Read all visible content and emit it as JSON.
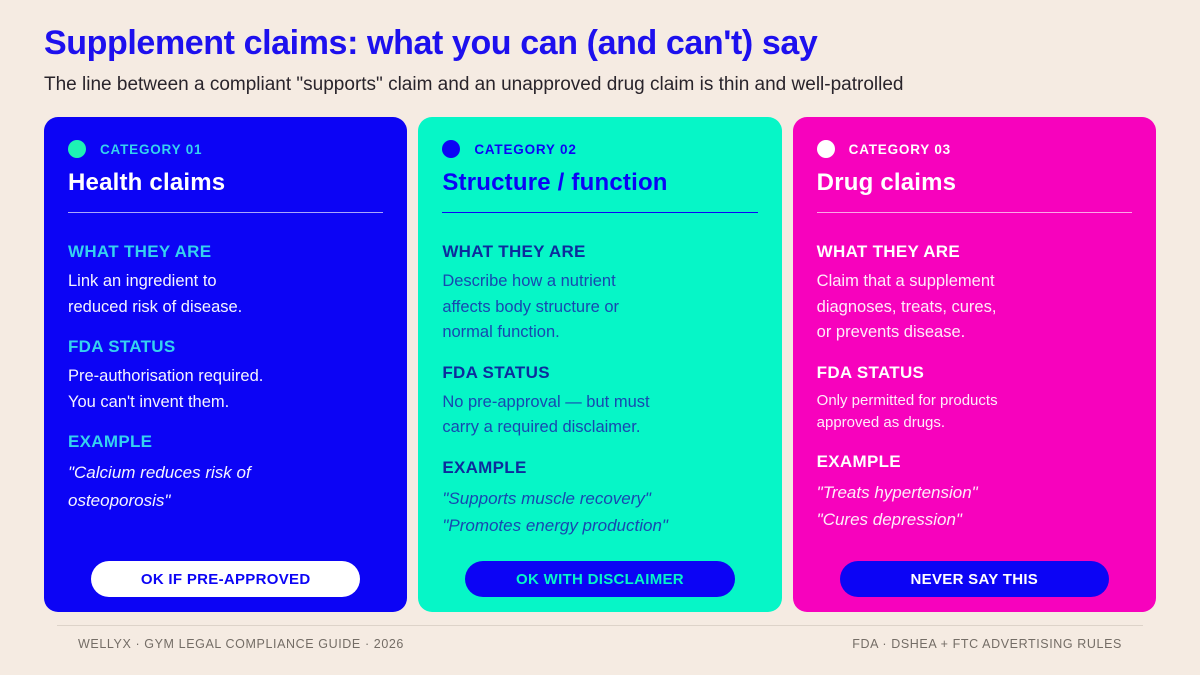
{
  "header": {
    "title": "Supplement claims: what you can (and can't) say",
    "subtitle": "The line between a compliant \"supports\" claim and an unapproved drug claim is thin and well-patrolled"
  },
  "cards": [
    {
      "category": "CATEGORY 01",
      "title": "Health claims",
      "what_heading": "WHAT THEY ARE",
      "what_body": "Link an ingredient to\nreduced risk of disease.",
      "fda_heading": "FDA STATUS",
      "fda_body": "Pre-authorisation required.\nYou can't invent them.",
      "example_heading": "EXAMPLE",
      "example_body": "\"Calcium reduces risk of\nosteoporosis\"",
      "button_label": "OK IF PRE-APPROVED",
      "card_color": "#0c04f5",
      "dot_color": "#1ef2b4",
      "accent_color": "#35d2ef"
    },
    {
      "category": "CATEGORY 02",
      "title": "Structure / function",
      "what_heading": "WHAT THEY ARE",
      "what_body": "Describe how a nutrient\naffects body structure or\nnormal function.",
      "fda_heading": "FDA STATUS",
      "fda_body": "No pre-approval — but must\ncarry a required disclaimer.",
      "example_heading": "EXAMPLE",
      "example_body": "\"Supports muscle recovery\"\n\"Promotes energy production\"",
      "button_label": "OK WITH DISCLAIMER",
      "card_color": "#06f6c7",
      "dot_color": "#0c04f5",
      "accent_color": "#0d2b9c"
    },
    {
      "category": "CATEGORY 03",
      "title": "Drug claims",
      "what_heading": "WHAT THEY ARE",
      "what_body": "Claim that a supplement\ndiagnoses, treats, cures,\nor prevents disease.",
      "fda_heading": "FDA STATUS",
      "fda_body": "Only permitted for products\napproved as drugs.",
      "example_heading": "EXAMPLE",
      "example_body": "\"Treats hypertension\"\n\"Cures depression\"",
      "button_label": "NEVER SAY THIS",
      "card_color": "#f702bd",
      "dot_color": "#ffffff",
      "accent_color": "#ffffff"
    }
  ],
  "footer": {
    "left": "WELLYX · GYM LEGAL COMPLIANCE GUIDE · 2026",
    "right": "FDA · DSHEA + FTC ADVERTISING RULES"
  },
  "colors": {
    "background": "#f5ebe2",
    "title_blue": "#1d10ee",
    "card_blue": "#0c04f5",
    "card_mint": "#06f6c7",
    "card_magenta": "#f702bd",
    "cyan_accent": "#35d2ef",
    "navy_accent": "#0d2b9c",
    "footer_text": "#746d66"
  }
}
